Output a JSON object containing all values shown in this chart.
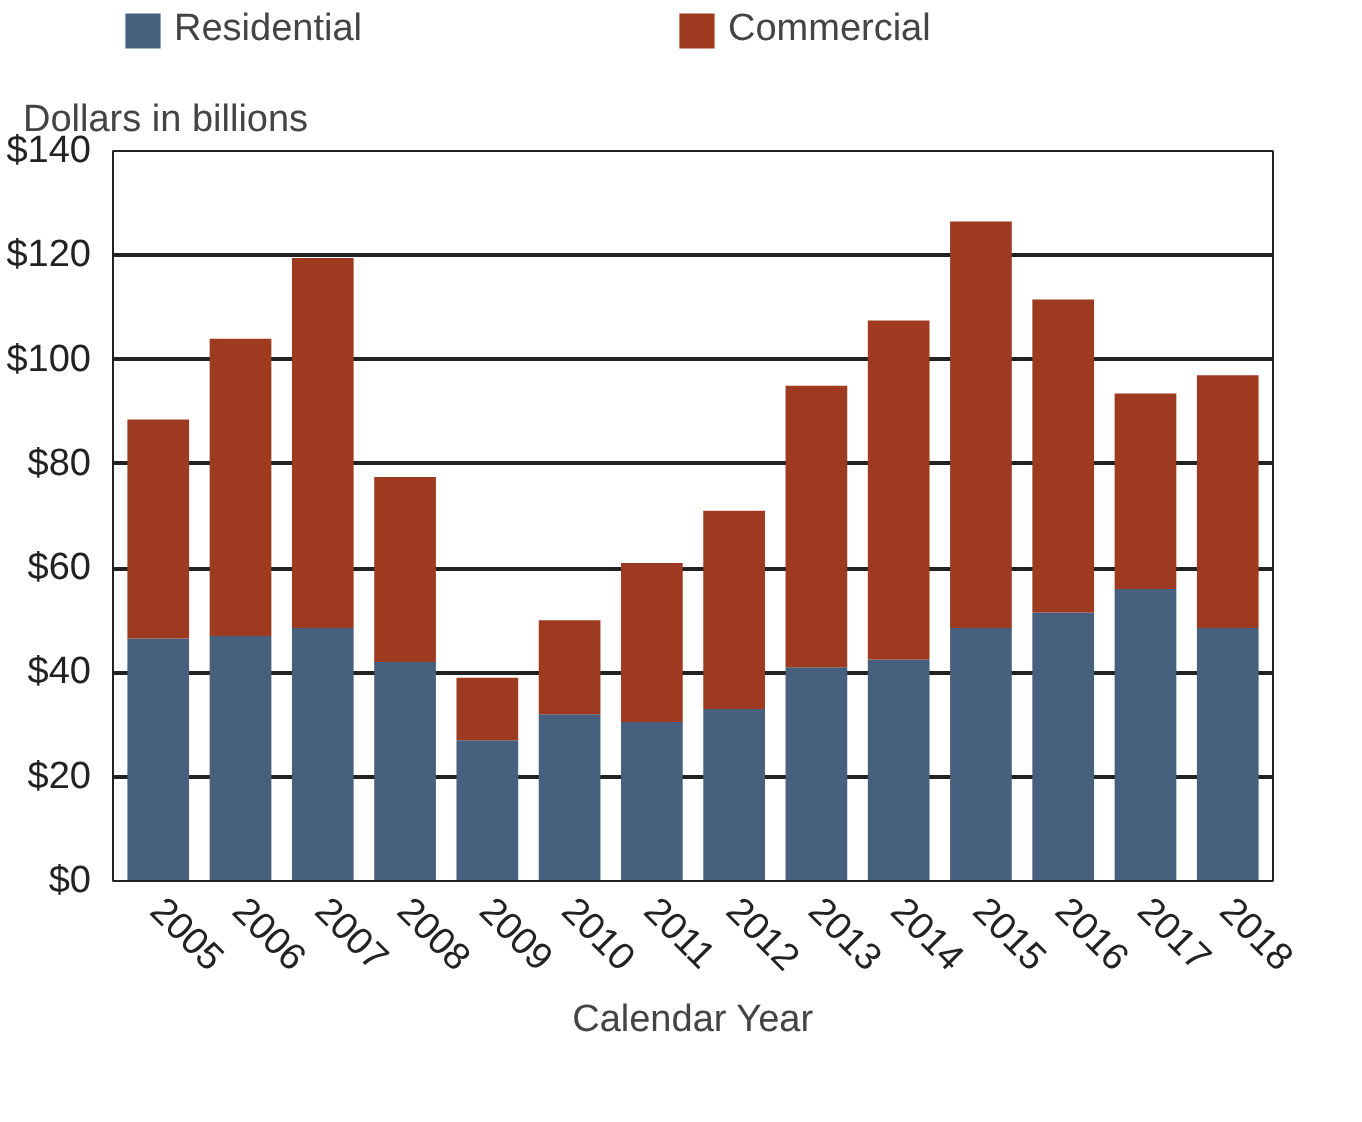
{
  "chart_data": {
    "type": "bar",
    "stacked": true,
    "xlabel": "Calendar Year",
    "ylabel": "Dollars in billions",
    "categories": [
      "2005",
      "2006",
      "2007",
      "2008",
      "2009",
      "2010",
      "2011",
      "2012",
      "2013",
      "2014",
      "2015",
      "2016",
      "2017",
      "2018"
    ],
    "series": [
      {
        "name": "Residential",
        "color": "#47607e",
        "values": [
          46.5,
          47,
          48.5,
          42,
          27,
          32,
          30.5,
          33,
          41,
          42.5,
          48.5,
          51.5,
          56,
          48.5
        ]
      },
      {
        "name": "Commercial",
        "color": "#9e3a1f",
        "values": [
          42,
          57,
          71,
          35.5,
          12,
          18,
          30.5,
          38,
          54,
          65,
          78,
          60,
          37.5,
          48.5
        ]
      }
    ],
    "ylim": [
      0,
      140
    ],
    "yticks": [
      {
        "value": 0,
        "label": "$0"
      },
      {
        "value": 20,
        "label": "$20"
      },
      {
        "value": 40,
        "label": "$40"
      },
      {
        "value": 60,
        "label": "$60"
      },
      {
        "value": 80,
        "label": "$80"
      },
      {
        "value": 100,
        "label": "$100"
      },
      {
        "value": 120,
        "label": "$120"
      },
      {
        "value": 140,
        "label": "$140"
      }
    ],
    "grid": "y",
    "legend": "top"
  }
}
